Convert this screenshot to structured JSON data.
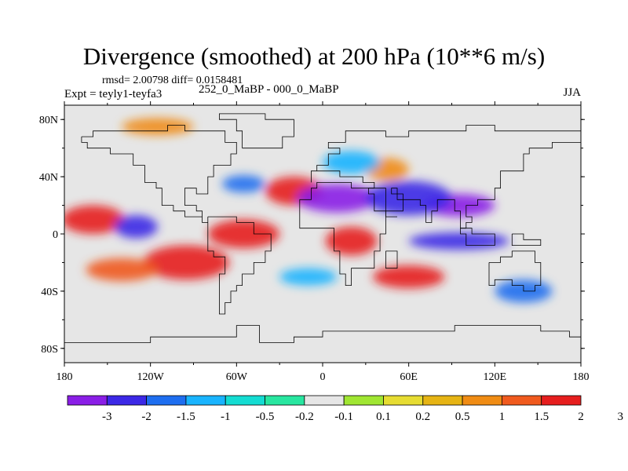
{
  "title": "Divergence (smoothed) at 200 hPa (10**6 m/s)",
  "stats": "rmsd= 2.00798 diff= 0.0158481",
  "experiment": "Expt = teyly1-teyfa3",
  "comparison": "252_0_MaBP - 000_0_MaBP",
  "season": "JJA",
  "map": {
    "projection": "cylindrical equidistant",
    "lon_range": [
      -180,
      180
    ],
    "lat_range": [
      -90,
      90
    ],
    "lat_ticks": [
      {
        "value": 80,
        "label": "80N"
      },
      {
        "value": 40,
        "label": "40N"
      },
      {
        "value": 0,
        "label": "0"
      },
      {
        "value": -40,
        "label": "40S"
      },
      {
        "value": -80,
        "label": "80S"
      }
    ],
    "lon_ticks": [
      {
        "value": -180,
        "label": "180"
      },
      {
        "value": -120,
        "label": "120W"
      },
      {
        "value": -60,
        "label": "60W"
      },
      {
        "value": 0,
        "label": "0"
      },
      {
        "value": 60,
        "label": "60E"
      },
      {
        "value": 120,
        "label": "120E"
      },
      {
        "value": 180,
        "label": "180"
      }
    ],
    "background_color": "#e6e6e6",
    "features": [
      {
        "lon": -160,
        "lat": 10,
        "r_lon": 22,
        "r_lat": 10,
        "level": 12
      },
      {
        "lon": -95,
        "lat": -20,
        "r_lon": 30,
        "r_lat": 12,
        "level": 12
      },
      {
        "lon": -140,
        "lat": -25,
        "r_lon": 25,
        "r_lat": 8,
        "level": 11
      },
      {
        "lon": -55,
        "lat": 0,
        "r_lon": 25,
        "r_lat": 10,
        "level": 12
      },
      {
        "lon": 20,
        "lat": -5,
        "r_lon": 18,
        "r_lat": 10,
        "level": 12
      },
      {
        "lon": 60,
        "lat": -30,
        "r_lon": 25,
        "r_lat": 8,
        "level": 12
      },
      {
        "lon": -20,
        "lat": 30,
        "r_lon": 20,
        "r_lat": 10,
        "level": 12
      },
      {
        "lon": 45,
        "lat": 45,
        "r_lon": 15,
        "r_lat": 8,
        "level": 10
      },
      {
        "lon": -115,
        "lat": 75,
        "r_lon": 25,
        "r_lat": 6,
        "level": 10
      },
      {
        "lon": -130,
        "lat": 5,
        "r_lon": 15,
        "r_lat": 8,
        "level": 1
      },
      {
        "lon": 10,
        "lat": 25,
        "r_lon": 28,
        "r_lat": 10,
        "level": 0
      },
      {
        "lon": 95,
        "lat": 20,
        "r_lon": 25,
        "r_lat": 8,
        "level": 0
      },
      {
        "lon": 60,
        "lat": 25,
        "r_lon": 30,
        "r_lat": 12,
        "level": 1
      },
      {
        "lon": 95,
        "lat": -5,
        "r_lon": 35,
        "r_lat": 6,
        "level": 1
      },
      {
        "lon": -55,
        "lat": 35,
        "r_lon": 15,
        "r_lat": 6,
        "level": 2
      },
      {
        "lon": -10,
        "lat": -30,
        "r_lon": 20,
        "r_lat": 6,
        "level": 3
      },
      {
        "lon": 140,
        "lat": -40,
        "r_lon": 20,
        "r_lat": 8,
        "level": 2
      },
      {
        "lon": 20,
        "lat": 50,
        "r_lon": 20,
        "r_lat": 8,
        "level": 3
      }
    ],
    "coastline_color": "#000000"
  },
  "colorbar": {
    "colors": [
      "#8a1ee6",
      "#3c28e6",
      "#1e6ef0",
      "#19b4ff",
      "#14dcd2",
      "#28e6a0",
      "#e6e6e6",
      "#a0e632",
      "#e6dc32",
      "#e6b414",
      "#f08c14",
      "#f05a1e",
      "#e61e1e"
    ],
    "labels": [
      "-3",
      "-2",
      "-1.5",
      "-1",
      "-0.5",
      "-0.2",
      "-0.1",
      "0.1",
      "0.2",
      "0.5",
      "1",
      "1.5",
      "2",
      "3"
    ]
  }
}
